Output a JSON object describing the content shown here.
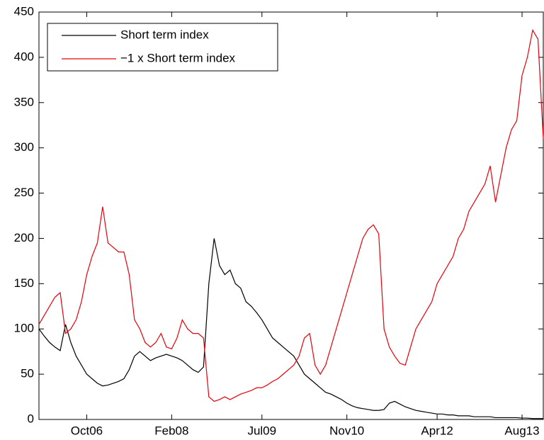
{
  "chart_data": {
    "type": "line",
    "x": [
      "2006-01",
      "2006-02",
      "2006-03",
      "2006-04",
      "2006-05",
      "2006-06",
      "2006-07",
      "2006-08",
      "2006-09",
      "2006-10",
      "2006-11",
      "2006-12",
      "2007-01",
      "2007-02",
      "2007-03",
      "2007-04",
      "2007-05",
      "2007-06",
      "2007-07",
      "2007-08",
      "2007-09",
      "2007-10",
      "2007-11",
      "2007-12",
      "2008-01",
      "2008-02",
      "2008-03",
      "2008-04",
      "2008-05",
      "2008-06",
      "2008-07",
      "2008-08",
      "2008-09",
      "2008-10",
      "2008-11",
      "2008-12",
      "2009-01",
      "2009-02",
      "2009-03",
      "2009-04",
      "2009-05",
      "2009-06",
      "2009-07",
      "2009-08",
      "2009-09",
      "2009-10",
      "2009-11",
      "2009-12",
      "2010-01",
      "2010-02",
      "2010-03",
      "2010-04",
      "2010-05",
      "2010-06",
      "2010-07",
      "2010-08",
      "2010-09",
      "2010-10",
      "2010-11",
      "2010-12",
      "2011-01",
      "2011-02",
      "2011-03",
      "2011-04",
      "2011-05",
      "2011-06",
      "2011-07",
      "2011-08",
      "2011-09",
      "2011-10",
      "2011-11",
      "2011-12",
      "2012-01",
      "2012-02",
      "2012-03",
      "2012-04",
      "2012-05",
      "2012-06",
      "2012-07",
      "2012-08",
      "2012-09",
      "2012-10",
      "2012-11",
      "2012-12",
      "2013-01",
      "2013-02",
      "2013-03",
      "2013-04",
      "2013-05",
      "2013-06",
      "2013-07",
      "2013-08",
      "2013-09",
      "2013-10",
      "2013-11",
      "2013-12"
    ],
    "series": [
      {
        "name": "Short term index",
        "color": "#000000",
        "values": [
          100,
          92,
          85,
          80,
          76,
          105,
          85,
          70,
          60,
          50,
          45,
          40,
          37,
          38,
          40,
          42,
          45,
          55,
          70,
          75,
          70,
          65,
          68,
          70,
          72,
          70,
          68,
          65,
          60,
          55,
          52,
          58,
          150,
          200,
          170,
          160,
          165,
          150,
          145,
          130,
          125,
          118,
          110,
          100,
          90,
          85,
          80,
          75,
          70,
          60,
          50,
          45,
          40,
          35,
          30,
          28,
          25,
          22,
          18,
          15,
          13,
          12,
          11,
          10,
          10,
          11,
          18,
          20,
          17,
          14,
          12,
          10,
          9,
          8,
          7,
          6,
          6,
          5,
          5,
          4,
          4,
          4,
          3,
          3,
          3,
          3,
          2,
          2,
          2,
          2,
          2,
          1.5,
          1.5,
          1,
          1,
          1
        ]
      },
      {
        "name": "−1 x Short term index",
        "color": "#e8000b",
        "values": [
          105,
          115,
          125,
          135,
          140,
          95,
          100,
          110,
          130,
          160,
          180,
          195,
          235,
          195,
          190,
          185,
          185,
          160,
          110,
          100,
          85,
          80,
          85,
          95,
          80,
          78,
          90,
          110,
          100,
          95,
          95,
          90,
          25,
          20,
          22,
          25,
          22,
          25,
          28,
          30,
          32,
          35,
          35,
          38,
          42,
          45,
          50,
          55,
          60,
          70,
          90,
          95,
          60,
          50,
          60,
          80,
          100,
          120,
          140,
          160,
          180,
          200,
          210,
          215,
          205,
          100,
          80,
          70,
          62,
          60,
          80,
          100,
          110,
          120,
          130,
          150,
          160,
          170,
          180,
          200,
          210,
          230,
          240,
          250,
          260,
          280,
          240,
          270,
          300,
          320,
          330,
          380,
          400,
          430,
          420,
          310
        ]
      }
    ],
    "xlim": [
      "2006-01",
      "2013-12"
    ],
    "xticks": [
      {
        "value": "2006-10",
        "label": "Oct06"
      },
      {
        "value": "2008-02",
        "label": "Feb08"
      },
      {
        "value": "2009-07",
        "label": "Jul09"
      },
      {
        "value": "2010-11",
        "label": "Nov10"
      },
      {
        "value": "2012-04",
        "label": "Apr12"
      },
      {
        "value": "2013-08",
        "label": "Aug13"
      }
    ],
    "ylim": [
      0,
      450
    ],
    "yticks": [
      0,
      50,
      100,
      150,
      200,
      250,
      300,
      350,
      400,
      450
    ],
    "grid": false,
    "legend": "upper-left"
  }
}
